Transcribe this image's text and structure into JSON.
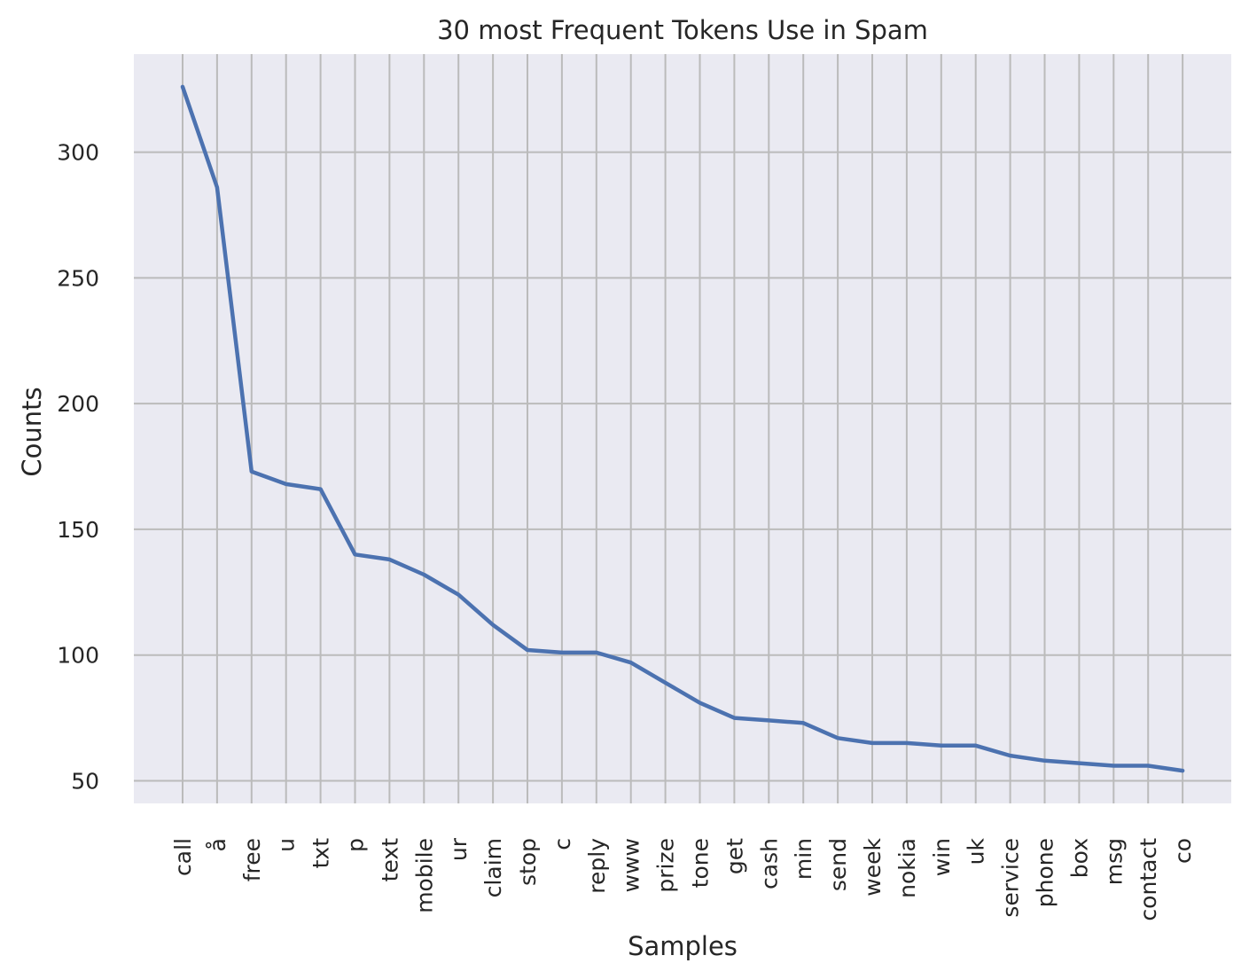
{
  "chart_data": {
    "type": "line",
    "title": "30 most Frequent Tokens Use in Spam",
    "xlabel": "Samples",
    "ylabel": "Counts",
    "categories": [
      "call",
      "å",
      "free",
      "u",
      "txt",
      "p",
      "text",
      "mobile",
      "ur",
      "claim",
      "stop",
      "c",
      "reply",
      "www",
      "prize",
      "tone",
      "get",
      "cash",
      "min",
      "send",
      "week",
      "nokia",
      "win",
      "uk",
      "service",
      "phone",
      "box",
      "msg",
      "contact",
      "co"
    ],
    "series": [
      {
        "values": [
          326,
          286,
          173,
          168,
          166,
          140,
          138,
          132,
          124,
          112,
          102,
          101,
          101,
          97,
          89,
          81,
          75,
          74,
          73,
          67,
          65,
          65,
          64,
          64,
          60,
          58,
          57,
          56,
          56,
          54
        ]
      }
    ],
    "yticks": [
      50,
      100,
      150,
      200,
      250,
      300
    ],
    "ylim": [
      41,
      339
    ],
    "grid": true,
    "line_color": "#4c72b0",
    "plot_background": "#eaeaf2",
    "grid_color": "#bbbbbb"
  }
}
